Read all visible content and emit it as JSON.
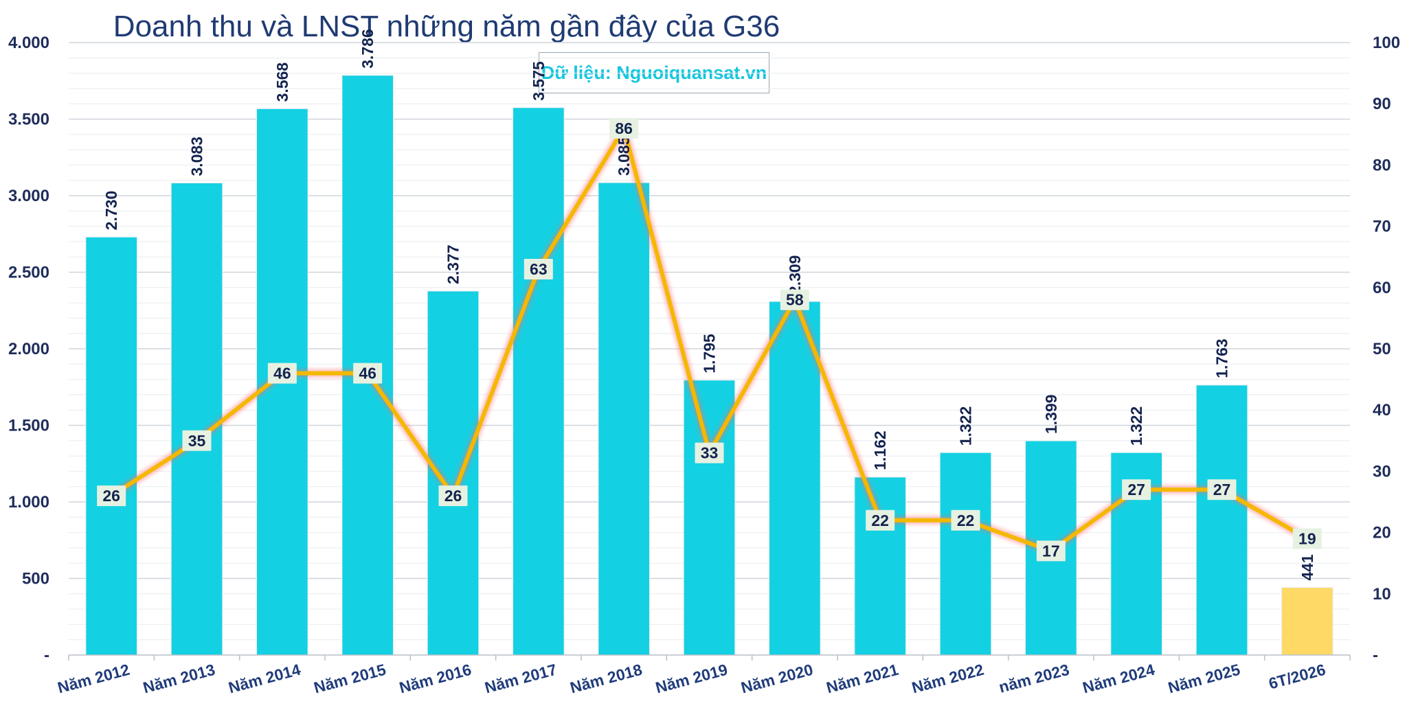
{
  "title": "Doanh thu và LNST những năm gần đây của G36",
  "source": "Dữ liệu: Nguoiquansat.vn",
  "chart_data": {
    "type": "bar",
    "categories": [
      "Năm 2012",
      "Năm 2013",
      "Năm 2014",
      "Năm 2015",
      "Năm 2016",
      "Năm 2017",
      "Năm 2018",
      "Năm 2019",
      "Năm 2020",
      "Năm 2021",
      "Năm 2022",
      "năm 2023",
      "Năm 2024",
      "Năm 2025",
      "6T/2026"
    ],
    "series": [
      {
        "kind": "bar",
        "axis": "left",
        "values": [
          2730,
          3083,
          3568,
          3786,
          2377,
          3575,
          3085,
          1795,
          2309,
          1162,
          1322,
          1399,
          1322,
          1763,
          441
        ],
        "labels": [
          "2.730",
          "3.083",
          "3.568",
          "3.786",
          "2.377",
          "3.575",
          "3.085",
          "1.795",
          "2.309",
          "1.162",
          "1.322",
          "1.399",
          "1.322",
          "1.763",
          "441"
        ],
        "color": "#13d1e2",
        "highlight_color": "#ffd966",
        "highlight_index": 14
      },
      {
        "kind": "line",
        "axis": "right",
        "values": [
          26,
          35,
          46,
          46,
          26,
          63,
          86,
          33,
          58,
          22,
          22,
          17,
          27,
          27,
          19
        ],
        "color": "#f5b800"
      }
    ],
    "left_axis": {
      "ylim": [
        0,
        4000
      ],
      "ticks": [
        {
          "v": 0,
          "label": "-"
        },
        {
          "v": 500,
          "label": "500"
        },
        {
          "v": 1000,
          "label": "1.000"
        },
        {
          "v": 1500,
          "label": "1.500"
        },
        {
          "v": 2000,
          "label": "2.000"
        },
        {
          "v": 2500,
          "label": "2.500"
        },
        {
          "v": 3000,
          "label": "3.000"
        },
        {
          "v": 3500,
          "label": "3.500"
        },
        {
          "v": 4000,
          "label": "4.000"
        }
      ]
    },
    "right_axis": {
      "ylim": [
        0,
        100
      ],
      "ticks": [
        {
          "v": 0,
          "label": "-"
        },
        {
          "v": 10,
          "label": "10"
        },
        {
          "v": 20,
          "label": "20"
        },
        {
          "v": 30,
          "label": "30"
        },
        {
          "v": 40,
          "label": "40"
        },
        {
          "v": 50,
          "label": "50"
        },
        {
          "v": 60,
          "label": "60"
        },
        {
          "v": 70,
          "label": "70"
        },
        {
          "v": 80,
          "label": "80"
        },
        {
          "v": 90,
          "label": "90"
        },
        {
          "v": 100,
          "label": "100"
        }
      ]
    },
    "grid": true,
    "legend": "none"
  }
}
